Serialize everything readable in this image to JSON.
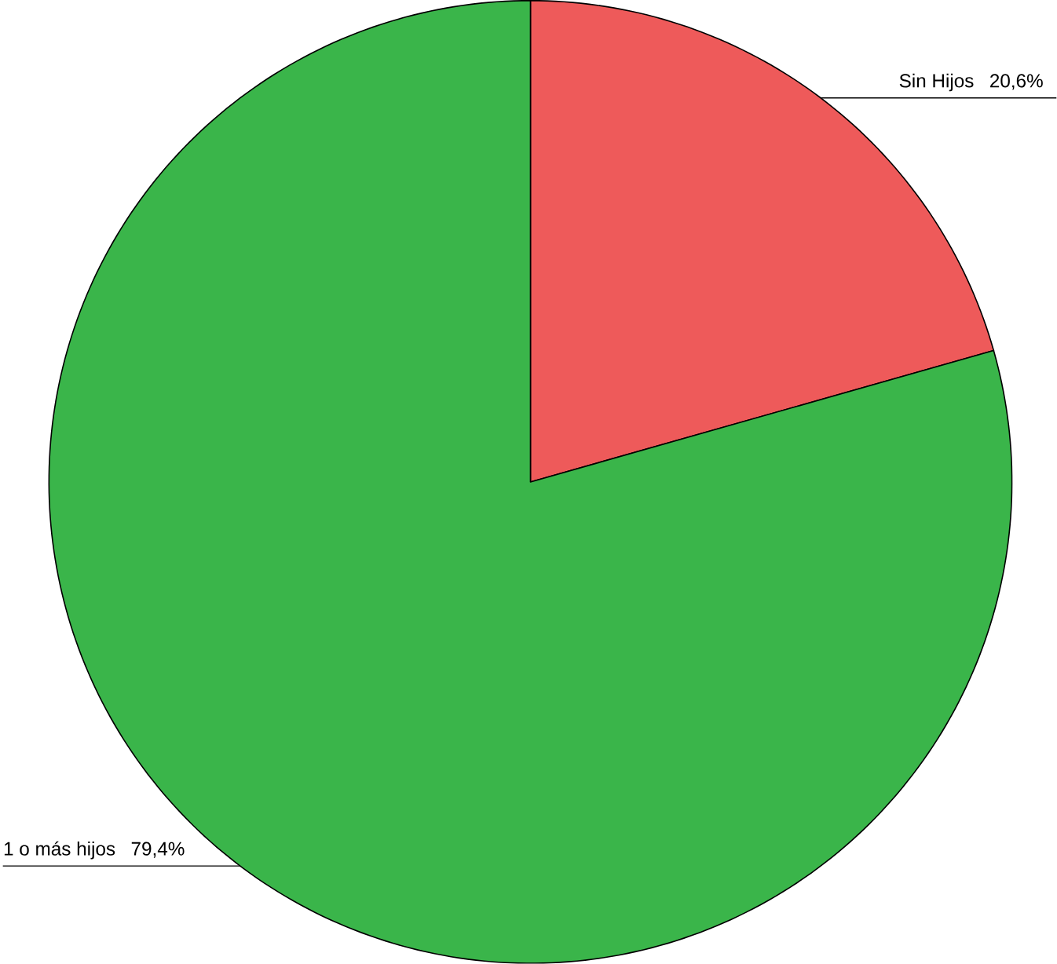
{
  "chart_data": {
    "type": "pie",
    "categories": [
      "Sin Hijos",
      "1 o más hijos"
    ],
    "values": [
      20.6,
      79.4
    ],
    "value_labels": [
      "20,6%",
      "79,4%"
    ],
    "colors": [
      "#ee5a5a",
      "#3ab54a"
    ]
  }
}
